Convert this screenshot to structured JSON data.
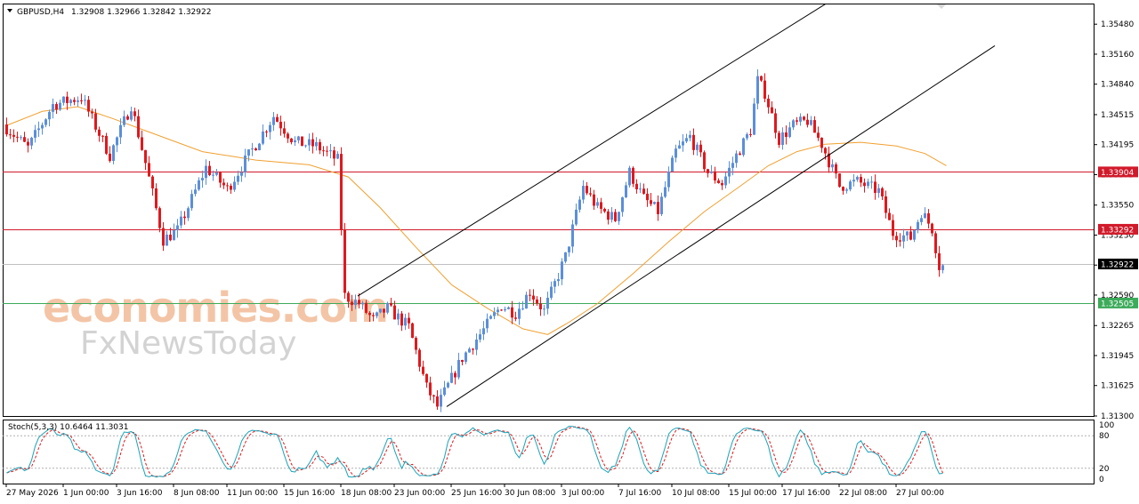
{
  "header": {
    "symbol": "GBPUSD,H4",
    "ohlc": "1.32908 1.32966 1.32842 1.32922",
    "stoch_label": "Stoch(5,3,3) 10.6464 11.3031"
  },
  "watermark": {
    "line1": "economies.com",
    "line2": "FxNewsToday"
  },
  "colors": {
    "bull": "#5b8fd9",
    "bear": "#e0191d",
    "ma": "#f0a030",
    "stoch_main": "#1aa3b8",
    "stoch_signal": "#e0191d",
    "red_level": "#d11a2a",
    "green_level": "#3cab5a"
  },
  "chart_data": [
    {
      "type": "candlestick",
      "title": "GBPUSD,H4",
      "ylim": [
        1.313,
        1.357
      ],
      "y_ticks": [
        "1.35480",
        "1.35160",
        "1.34840",
        "1.34515",
        "1.34195",
        "1.33875",
        "1.33550",
        "1.33230",
        "1.32910",
        "1.32590",
        "1.32265",
        "1.31945",
        "1.31625",
        "1.31300"
      ],
      "x_tick_labels": [
        "27 May 2026",
        "1 Jun 00:00",
        "3 Jun 16:00",
        "8 Jun 08:00",
        "11 Jun 00:00",
        "15 Jun 16:00",
        "18 Jun 08:00",
        "23 Jun 00:00",
        "25 Jun 16:00",
        "30 Jun 08:00",
        "3 Jul 00:00",
        "7 Jul 16:00",
        "10 Jul 08:00",
        "15 Jul 00:00",
        "17 Jul 16:00",
        "22 Jul 08:00",
        "27 Jul 00:00"
      ],
      "price_anchors": [
        [
          0,
          1.3441
        ],
        [
          7,
          1.3416
        ],
        [
          14,
          1.3462
        ],
        [
          22,
          1.347
        ],
        [
          30,
          1.3408
        ],
        [
          36,
          1.3462
        ],
        [
          40,
          1.34
        ],
        [
          45,
          1.3318
        ],
        [
          49,
          1.3328
        ],
        [
          57,
          1.3395
        ],
        [
          63,
          1.3372
        ],
        [
          70,
          1.3414
        ],
        [
          76,
          1.345
        ],
        [
          82,
          1.3422
        ],
        [
          88,
          1.3418
        ],
        [
          94,
          1.3403
        ],
        [
          96,
          1.3258
        ],
        [
          100,
          1.325
        ],
        [
          104,
          1.3232
        ],
        [
          108,
          1.3245
        ],
        [
          114,
          1.3225
        ],
        [
          119,
          1.316
        ],
        [
          122,
          1.314
        ],
        [
          129,
          1.3192
        ],
        [
          135,
          1.3222
        ],
        [
          140,
          1.3248
        ],
        [
          144,
          1.324
        ],
        [
          148,
          1.3263
        ],
        [
          152,
          1.3242
        ],
        [
          158,
          1.33
        ],
        [
          163,
          1.3375
        ],
        [
          167,
          1.3352
        ],
        [
          172,
          1.334
        ],
        [
          176,
          1.339
        ],
        [
          180,
          1.3362
        ],
        [
          184,
          1.3348
        ],
        [
          189,
          1.3412
        ],
        [
          193,
          1.3428
        ],
        [
          198,
          1.339
        ],
        [
          202,
          1.3378
        ],
        [
          206,
          1.3408
        ],
        [
          210,
          1.3435
        ],
        [
          212,
          1.3488
        ],
        [
          214,
          1.3475
        ],
        [
          218,
          1.3425
        ],
        [
          222,
          1.344
        ],
        [
          226,
          1.3445
        ],
        [
          230,
          1.342
        ],
        [
          235,
          1.3375
        ],
        [
          240,
          1.338
        ],
        [
          246,
          1.337
        ],
        [
          250,
          1.3325
        ],
        [
          255,
          1.332
        ],
        [
          258,
          1.3348
        ],
        [
          261,
          1.333
        ],
        [
          263,
          1.329
        ]
      ],
      "moving_average": [
        [
          0,
          1.344
        ],
        [
          10,
          1.3455
        ],
        [
          20,
          1.346
        ],
        [
          30,
          1.3447
        ],
        [
          40,
          1.3433
        ],
        [
          55,
          1.3412
        ],
        [
          70,
          1.3403
        ],
        [
          85,
          1.3398
        ],
        [
          96,
          1.3385
        ],
        [
          105,
          1.3352
        ],
        [
          115,
          1.331
        ],
        [
          125,
          1.327
        ],
        [
          135,
          1.3245
        ],
        [
          145,
          1.3223
        ],
        [
          152,
          1.3217
        ],
        [
          158,
          1.323
        ],
        [
          166,
          1.325
        ],
        [
          176,
          1.3282
        ],
        [
          186,
          1.3316
        ],
        [
          196,
          1.3348
        ],
        [
          206,
          1.3375
        ],
        [
          214,
          1.3397
        ],
        [
          222,
          1.3412
        ],
        [
          230,
          1.342
        ],
        [
          240,
          1.3422
        ],
        [
          250,
          1.3418
        ],
        [
          258,
          1.341
        ],
        [
          264,
          1.3397
        ]
      ],
      "channel_lines": [
        {
          "from": [
            99,
            1.3258
          ],
          "to": [
            234,
            1.3578
          ]
        },
        {
          "from": [
            124,
            1.314
          ],
          "to": [
            278,
            1.3525
          ]
        }
      ],
      "horizontal_levels": [
        {
          "value": 1.33904,
          "label": "1.33904",
          "style": "red"
        },
        {
          "value": 1.33292,
          "label": "1.33292",
          "style": "red"
        },
        {
          "value": 1.32922,
          "label": "1.32922",
          "style": "current"
        },
        {
          "value": 1.32505,
          "label": "1.32505",
          "style": "green"
        }
      ]
    },
    {
      "type": "line",
      "title": "Stoch(5,3,3)",
      "ylim": [
        0,
        100
      ],
      "y_ticks": [
        "100",
        "80",
        "20",
        "0"
      ],
      "levels": [
        20,
        80
      ],
      "series": [
        {
          "name": "Main",
          "values": []
        },
        {
          "name": "Signal",
          "values": []
        }
      ],
      "last_main": 10.6464,
      "last_signal": 11.3031
    }
  ]
}
